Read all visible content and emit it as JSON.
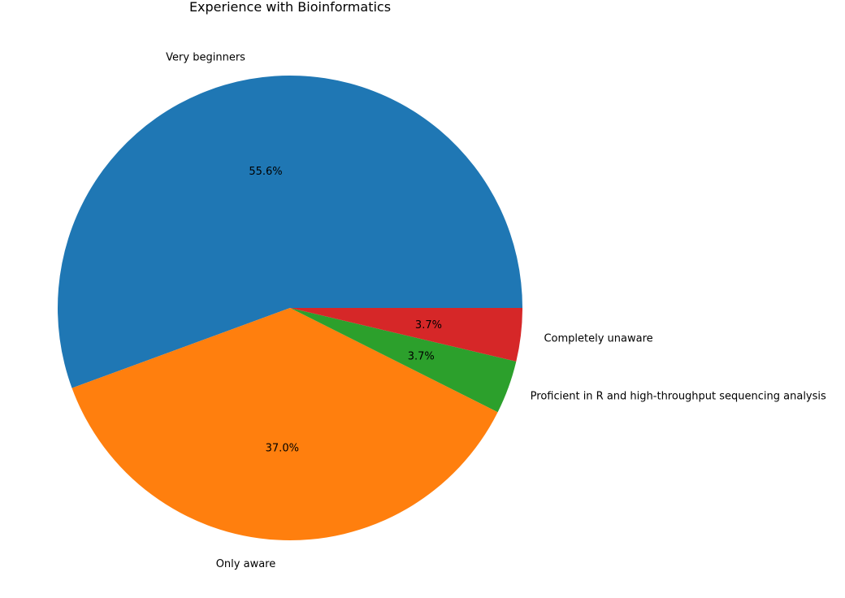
{
  "chart_data": {
    "type": "pie",
    "title": "Experience with Bioinformatics",
    "slices": [
      {
        "label": "Very beginners",
        "value": 55.6,
        "pct_label": "55.6%",
        "color": "#1f77b4"
      },
      {
        "label": "Only aware",
        "value": 37.0,
        "pct_label": "37.0%",
        "color": "#ff7f0e"
      },
      {
        "label": "Proficient in R and high-throughput sequencing analysis",
        "value": 3.7,
        "pct_label": "3.7%",
        "color": "#2ca02c"
      },
      {
        "label": "Completely unaware",
        "value": 3.7,
        "pct_label": "3.7%",
        "color": "#d62728"
      }
    ],
    "start_angle": "0 degrees (3 o'clock)",
    "direction": "counter-clockwise"
  }
}
